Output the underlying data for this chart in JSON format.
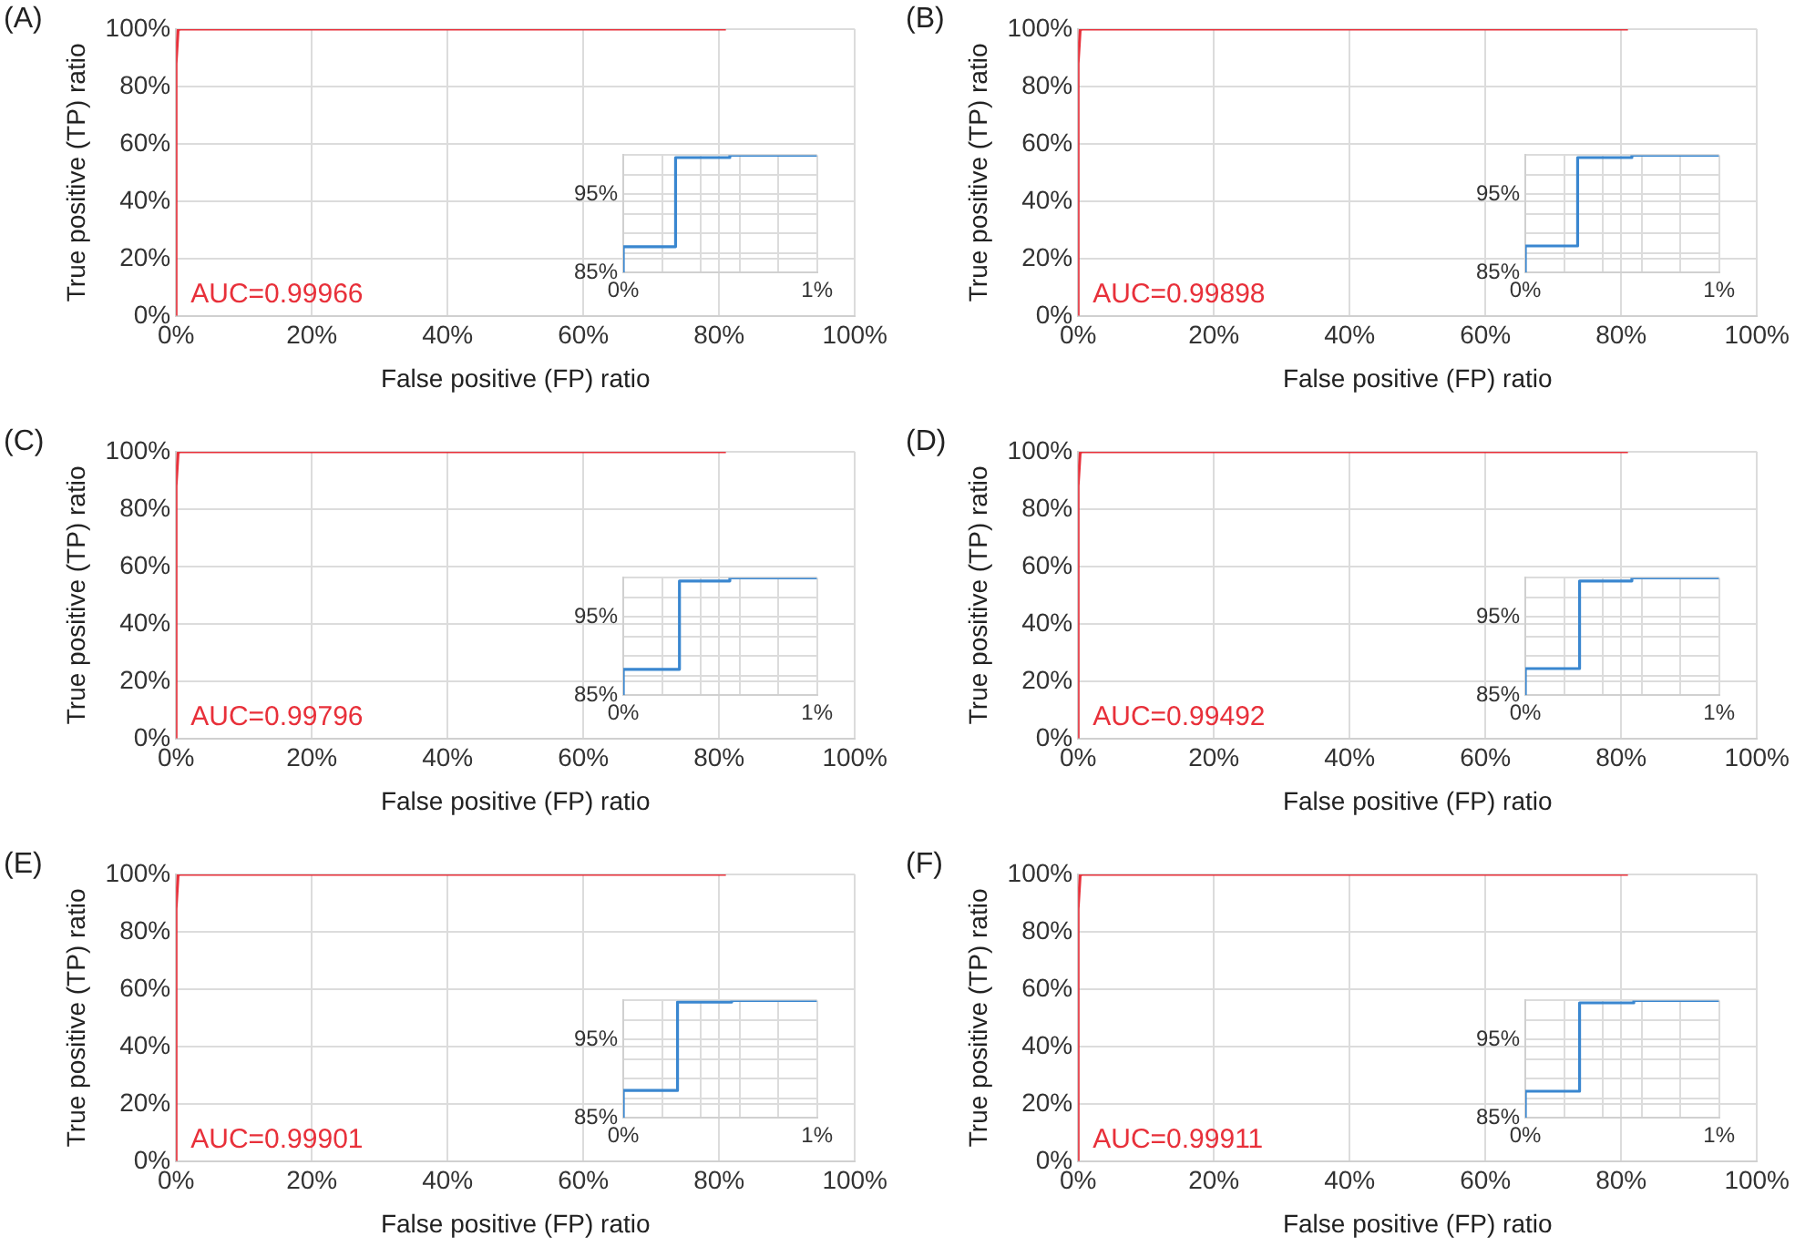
{
  "chart_data": [
    {
      "type": "line",
      "title": "(A)",
      "xlabel": "False positive (FP) ratio",
      "ylabel": "True positive (TP) ratio",
      "x": [
        0,
        0,
        0.3,
        0.55,
        81
      ],
      "series": [
        {
          "color": "#e8303a",
          "values": [
            0,
            88,
            99.7,
            100,
            100
          ]
        }
      ],
      "xlim": [
        0,
        100
      ],
      "ylim": [
        0,
        100
      ],
      "xticks": [
        {
          "value": 0,
          "label": "0%"
        },
        {
          "value": 20,
          "label": "20%"
        },
        {
          "value": 40,
          "label": "40%"
        },
        {
          "value": 60,
          "label": "60%"
        },
        {
          "value": 80,
          "label": "80%"
        },
        {
          "value": 100,
          "label": "100%"
        }
      ],
      "yticks": [
        {
          "value": 0,
          "label": "0%"
        },
        {
          "value": 20,
          "label": "20%"
        },
        {
          "value": 40,
          "label": "40%"
        },
        {
          "value": 60,
          "label": "60%"
        },
        {
          "value": 80,
          "label": "80%"
        },
        {
          "value": 100,
          "label": "100%"
        }
      ],
      "grid": true,
      "annotations": [
        "AUC=0.99966"
      ]
    },
    {
      "type": "line",
      "x": [
        0,
        0,
        0.27,
        0.27,
        0.55,
        0.55,
        1
      ],
      "series": [
        {
          "color": "#3a87d0",
          "values": [
            85,
            88.3,
            88.3,
            99.7,
            99.7,
            100,
            100
          ]
        }
      ],
      "xlim": [
        0,
        1
      ],
      "ylim": [
        85,
        100
      ],
      "xticks": [
        {
          "value": 0,
          "label": "0%"
        },
        {
          "value": 0.2,
          "label": null
        },
        {
          "value": 0.4,
          "label": null
        },
        {
          "value": 0.6,
          "label": null
        },
        {
          "value": 0.8,
          "label": null
        },
        {
          "value": 1,
          "label": "1%"
        }
      ],
      "yticks": [
        {
          "value": 85,
          "label": "85%"
        },
        {
          "value": 87.5,
          "label": null
        },
        {
          "value": 90,
          "label": null
        },
        {
          "value": 92.5,
          "label": null
        },
        {
          "value": 95,
          "label": "95%"
        },
        {
          "value": 97.5,
          "label": null
        },
        {
          "value": 100,
          "label": null
        }
      ],
      "grid": true
    },
    {
      "type": "line",
      "title": "(B)",
      "xlabel": "False positive (FP) ratio",
      "ylabel": "True positive (TP) ratio",
      "x": [
        0,
        0,
        0.3,
        0.55,
        81
      ],
      "series": [
        {
          "color": "#e8303a",
          "values": [
            0,
            88,
            99.7,
            100,
            100
          ]
        }
      ],
      "xlim": [
        0,
        100
      ],
      "ylim": [
        0,
        100
      ],
      "xticks": [
        {
          "value": 0,
          "label": "0%"
        },
        {
          "value": 20,
          "label": "20%"
        },
        {
          "value": 40,
          "label": "40%"
        },
        {
          "value": 60,
          "label": "60%"
        },
        {
          "value": 80,
          "label": "80%"
        },
        {
          "value": 100,
          "label": "100%"
        }
      ],
      "yticks": [
        {
          "value": 0,
          "label": "0%"
        },
        {
          "value": 20,
          "label": "20%"
        },
        {
          "value": 40,
          "label": "40%"
        },
        {
          "value": 60,
          "label": "60%"
        },
        {
          "value": 80,
          "label": "80%"
        },
        {
          "value": 100,
          "label": "100%"
        }
      ],
      "grid": true,
      "annotations": [
        "AUC=0.99898"
      ]
    },
    {
      "type": "line",
      "x": [
        0,
        0,
        0.27,
        0.27,
        0.55,
        0.55,
        1
      ],
      "series": [
        {
          "color": "#3a87d0",
          "values": [
            85,
            88.4,
            88.4,
            99.7,
            99.7,
            100,
            100
          ]
        }
      ],
      "xlim": [
        0,
        1
      ],
      "ylim": [
        85,
        100
      ],
      "xticks": [
        {
          "value": 0,
          "label": "0%"
        },
        {
          "value": 0.2,
          "label": null
        },
        {
          "value": 0.4,
          "label": null
        },
        {
          "value": 0.6,
          "label": null
        },
        {
          "value": 0.8,
          "label": null
        },
        {
          "value": 1,
          "label": "1%"
        }
      ],
      "yticks": [
        {
          "value": 85,
          "label": "85%"
        },
        {
          "value": 87.5,
          "label": null
        },
        {
          "value": 90,
          "label": null
        },
        {
          "value": 92.5,
          "label": null
        },
        {
          "value": 95,
          "label": "95%"
        },
        {
          "value": 97.5,
          "label": null
        },
        {
          "value": 100,
          "label": null
        }
      ],
      "grid": true
    },
    {
      "type": "line",
      "title": "(C)",
      "xlabel": "False positive (FP) ratio",
      "ylabel": "True positive (TP) ratio",
      "x": [
        0,
        0,
        0.3,
        0.55,
        81
      ],
      "series": [
        {
          "color": "#e8303a",
          "values": [
            0,
            88,
            99.6,
            100,
            100
          ]
        }
      ],
      "xlim": [
        0,
        100
      ],
      "ylim": [
        0,
        100
      ],
      "xticks": [
        {
          "value": 0,
          "label": "0%"
        },
        {
          "value": 20,
          "label": "20%"
        },
        {
          "value": 40,
          "label": "40%"
        },
        {
          "value": 60,
          "label": "60%"
        },
        {
          "value": 80,
          "label": "80%"
        },
        {
          "value": 100,
          "label": "100%"
        }
      ],
      "yticks": [
        {
          "value": 0,
          "label": "0%"
        },
        {
          "value": 20,
          "label": "20%"
        },
        {
          "value": 40,
          "label": "40%"
        },
        {
          "value": 60,
          "label": "60%"
        },
        {
          "value": 80,
          "label": "80%"
        },
        {
          "value": 100,
          "label": "100%"
        }
      ],
      "grid": true,
      "annotations": [
        "AUC=0.99796"
      ]
    },
    {
      "type": "line",
      "x": [
        0,
        0,
        0.29,
        0.29,
        0.55,
        0.55,
        1
      ],
      "series": [
        {
          "color": "#3a87d0",
          "values": [
            85,
            88.3,
            88.3,
            99.6,
            99.6,
            100,
            100
          ]
        }
      ],
      "xlim": [
        0,
        1
      ],
      "ylim": [
        85,
        100
      ],
      "xticks": [
        {
          "value": 0,
          "label": "0%"
        },
        {
          "value": 0.2,
          "label": null
        },
        {
          "value": 0.4,
          "label": null
        },
        {
          "value": 0.6,
          "label": null
        },
        {
          "value": 0.8,
          "label": null
        },
        {
          "value": 1,
          "label": "1%"
        }
      ],
      "yticks": [
        {
          "value": 85,
          "label": "85%"
        },
        {
          "value": 87.5,
          "label": null
        },
        {
          "value": 90,
          "label": null
        },
        {
          "value": 92.5,
          "label": null
        },
        {
          "value": 95,
          "label": "95%"
        },
        {
          "value": 97.5,
          "label": null
        },
        {
          "value": 100,
          "label": null
        }
      ],
      "grid": true
    },
    {
      "type": "line",
      "title": "(D)",
      "xlabel": "False positive (FP) ratio",
      "ylabel": "True positive (TP) ratio",
      "x": [
        0,
        0,
        0.3,
        0.55,
        81
      ],
      "series": [
        {
          "color": "#e8303a",
          "values": [
            0,
            88,
            99.6,
            100,
            100
          ]
        }
      ],
      "xlim": [
        0,
        100
      ],
      "ylim": [
        0,
        100
      ],
      "xticks": [
        {
          "value": 0,
          "label": "0%"
        },
        {
          "value": 20,
          "label": "20%"
        },
        {
          "value": 40,
          "label": "40%"
        },
        {
          "value": 60,
          "label": "60%"
        },
        {
          "value": 80,
          "label": "80%"
        },
        {
          "value": 100,
          "label": "100%"
        }
      ],
      "yticks": [
        {
          "value": 0,
          "label": "0%"
        },
        {
          "value": 20,
          "label": "20%"
        },
        {
          "value": 40,
          "label": "40%"
        },
        {
          "value": 60,
          "label": "60%"
        },
        {
          "value": 80,
          "label": "80%"
        },
        {
          "value": 100,
          "label": "100%"
        }
      ],
      "grid": true,
      "annotations": [
        "AUC=0.99492"
      ]
    },
    {
      "type": "line",
      "x": [
        0,
        0,
        0.28,
        0.28,
        0.55,
        0.55,
        1
      ],
      "series": [
        {
          "color": "#3a87d0",
          "values": [
            85,
            88.4,
            88.4,
            99.6,
            99.6,
            100,
            100
          ]
        }
      ],
      "xlim": [
        0,
        1
      ],
      "ylim": [
        85,
        100
      ],
      "xticks": [
        {
          "value": 0,
          "label": "0%"
        },
        {
          "value": 0.2,
          "label": null
        },
        {
          "value": 0.4,
          "label": null
        },
        {
          "value": 0.6,
          "label": null
        },
        {
          "value": 0.8,
          "label": null
        },
        {
          "value": 1,
          "label": "1%"
        }
      ],
      "yticks": [
        {
          "value": 85,
          "label": "85%"
        },
        {
          "value": 87.5,
          "label": null
        },
        {
          "value": 90,
          "label": null
        },
        {
          "value": 92.5,
          "label": null
        },
        {
          "value": 95,
          "label": "95%"
        },
        {
          "value": 97.5,
          "label": null
        },
        {
          "value": 100,
          "label": null
        }
      ],
      "grid": true
    },
    {
      "type": "line",
      "title": "(E)",
      "xlabel": "False positive (FP) ratio",
      "ylabel": "True positive (TP) ratio",
      "x": [
        0,
        0,
        0.3,
        0.55,
        81
      ],
      "series": [
        {
          "color": "#e8303a",
          "values": [
            0,
            88,
            99.8,
            100,
            100
          ]
        }
      ],
      "xlim": [
        0,
        100
      ],
      "ylim": [
        0,
        100
      ],
      "xticks": [
        {
          "value": 0,
          "label": "0%"
        },
        {
          "value": 20,
          "label": "20%"
        },
        {
          "value": 40,
          "label": "40%"
        },
        {
          "value": 60,
          "label": "60%"
        },
        {
          "value": 80,
          "label": "80%"
        },
        {
          "value": 100,
          "label": "100%"
        }
      ],
      "yticks": [
        {
          "value": 0,
          "label": "0%"
        },
        {
          "value": 20,
          "label": "20%"
        },
        {
          "value": 40,
          "label": "40%"
        },
        {
          "value": 60,
          "label": "60%"
        },
        {
          "value": 80,
          "label": "80%"
        },
        {
          "value": 100,
          "label": "100%"
        }
      ],
      "grid": true,
      "annotations": [
        "AUC=0.99901"
      ]
    },
    {
      "type": "line",
      "x": [
        0,
        0,
        0.28,
        0.28,
        0.56,
        0.56,
        1
      ],
      "series": [
        {
          "color": "#3a87d0",
          "values": [
            85,
            88.5,
            88.5,
            99.8,
            99.8,
            100,
            100
          ]
        }
      ],
      "xlim": [
        0,
        1
      ],
      "ylim": [
        85,
        100
      ],
      "xticks": [
        {
          "value": 0,
          "label": "0%"
        },
        {
          "value": 0.2,
          "label": null
        },
        {
          "value": 0.4,
          "label": null
        },
        {
          "value": 0.6,
          "label": null
        },
        {
          "value": 0.8,
          "label": null
        },
        {
          "value": 1,
          "label": "1%"
        }
      ],
      "yticks": [
        {
          "value": 85,
          "label": "85%"
        },
        {
          "value": 87.5,
          "label": null
        },
        {
          "value": 90,
          "label": null
        },
        {
          "value": 92.5,
          "label": null
        },
        {
          "value": 95,
          "label": "95%"
        },
        {
          "value": 97.5,
          "label": null
        },
        {
          "value": 100,
          "label": null
        }
      ],
      "grid": true
    },
    {
      "type": "line",
      "title": "(F)",
      "xlabel": "False positive (FP) ratio",
      "ylabel": "True positive (TP) ratio",
      "x": [
        0,
        0,
        0.3,
        0.55,
        81
      ],
      "series": [
        {
          "color": "#e8303a",
          "values": [
            0,
            88,
            99.7,
            100,
            100
          ]
        }
      ],
      "xlim": [
        0,
        100
      ],
      "ylim": [
        0,
        100
      ],
      "xticks": [
        {
          "value": 0,
          "label": "0%"
        },
        {
          "value": 20,
          "label": "20%"
        },
        {
          "value": 40,
          "label": "40%"
        },
        {
          "value": 60,
          "label": "60%"
        },
        {
          "value": 80,
          "label": "80%"
        },
        {
          "value": 100,
          "label": "100%"
        }
      ],
      "yticks": [
        {
          "value": 0,
          "label": "0%"
        },
        {
          "value": 20,
          "label": "20%"
        },
        {
          "value": 40,
          "label": "40%"
        },
        {
          "value": 60,
          "label": "60%"
        },
        {
          "value": 80,
          "label": "80%"
        },
        {
          "value": 100,
          "label": "100%"
        }
      ],
      "grid": true,
      "annotations": [
        "AUC=0.99911"
      ]
    },
    {
      "type": "line",
      "x": [
        0,
        0,
        0.28,
        0.28,
        0.56,
        0.56,
        1
      ],
      "series": [
        {
          "color": "#3a87d0",
          "values": [
            85,
            88.4,
            88.4,
            99.7,
            99.7,
            100,
            100
          ]
        }
      ],
      "xlim": [
        0,
        1
      ],
      "ylim": [
        85,
        100
      ],
      "xticks": [
        {
          "value": 0,
          "label": "0%"
        },
        {
          "value": 0.2,
          "label": null
        },
        {
          "value": 0.4,
          "label": null
        },
        {
          "value": 0.6,
          "label": null
        },
        {
          "value": 0.8,
          "label": null
        },
        {
          "value": 1,
          "label": "1%"
        }
      ],
      "yticks": [
        {
          "value": 85,
          "label": "85%"
        },
        {
          "value": 87.5,
          "label": null
        },
        {
          "value": 90,
          "label": null
        },
        {
          "value": 92.5,
          "label": null
        },
        {
          "value": 95,
          "label": "95%"
        },
        {
          "value": 97.5,
          "label": null
        },
        {
          "value": 100,
          "label": null
        }
      ],
      "grid": true
    }
  ]
}
